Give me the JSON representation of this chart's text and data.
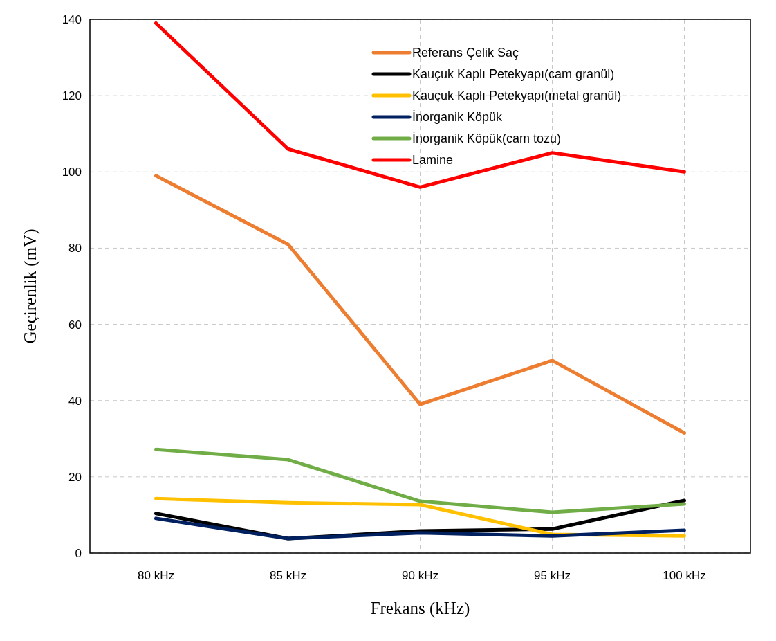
{
  "chart_data": {
    "type": "line",
    "xlabel": "Frekans (kHz)",
    "ylabel": "Geçirenlik (mV)",
    "categories": [
      "80 kHz",
      "85 kHz",
      "90 kHz",
      "95 kHz",
      "100 kHz"
    ],
    "series": [
      {
        "name": "Referans Çelik Saç",
        "color": "#ed7d31",
        "values": [
          99,
          81,
          39,
          50.5,
          31.5
        ]
      },
      {
        "name": "Kauçuk Kaplı Petekyapı(cam granül)",
        "color": "#000000",
        "values": [
          10.4,
          3.8,
          5.8,
          6.3,
          13.8
        ]
      },
      {
        "name": "Kauçuk Kaplı Petekyapı(metal granül)",
        "color": "#ffc000",
        "values": [
          14.3,
          13.2,
          12.7,
          4.9,
          4.5
        ]
      },
      {
        "name": "İnorganik Köpük",
        "color": "#002060",
        "values": [
          9.1,
          3.8,
          5.3,
          4.5,
          6
        ]
      },
      {
        "name": "İnorganik Köpük(cam tozu)",
        "color": "#70ad47",
        "values": [
          27.2,
          24.5,
          13.6,
          10.7,
          12.9
        ]
      },
      {
        "name": "Lamine",
        "color": "#ff0000",
        "values": [
          139,
          106,
          96,
          105,
          100
        ]
      }
    ],
    "ylim": [
      0,
      140
    ],
    "yticks": [
      0,
      20,
      40,
      60,
      80,
      100,
      120,
      140
    ],
    "grid": true,
    "legend": "top right",
    "line_style": "solid",
    "marker": "none"
  }
}
